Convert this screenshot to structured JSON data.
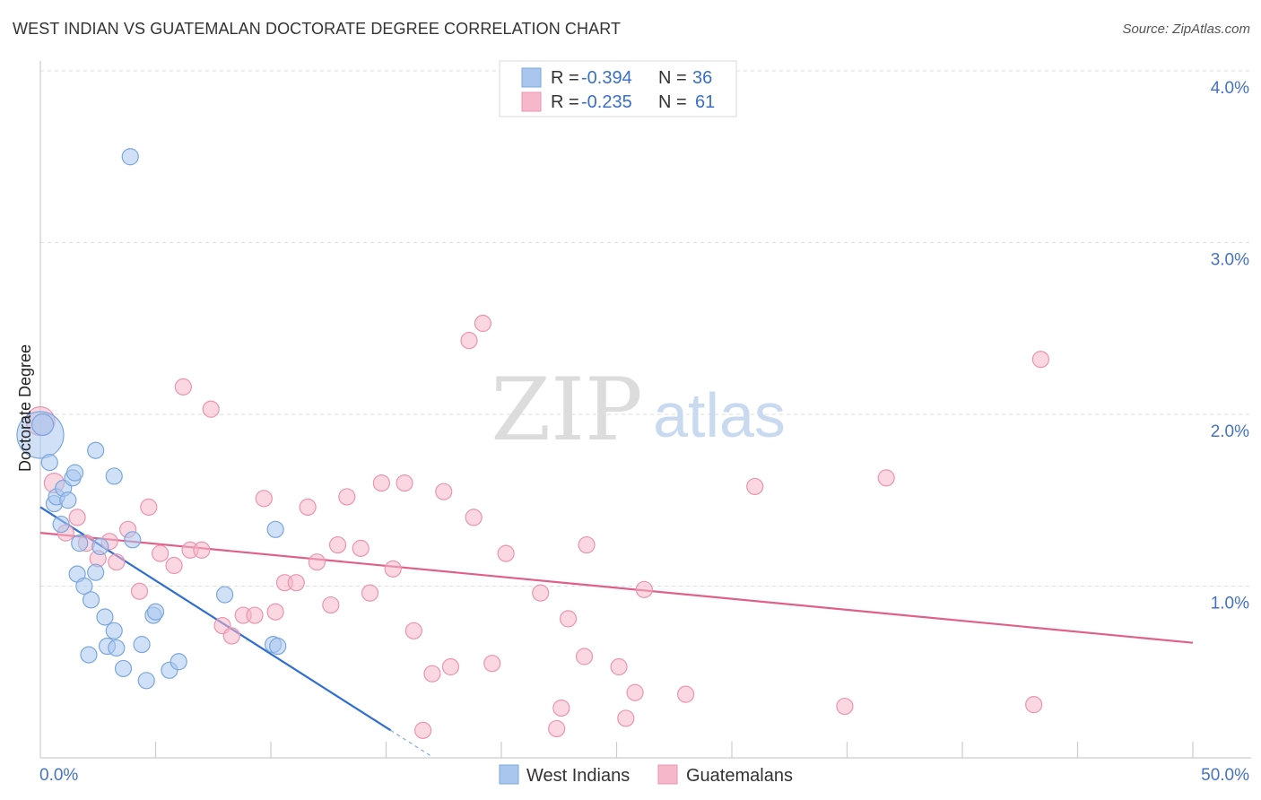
{
  "title": "WEST INDIAN VS GUATEMALAN DOCTORATE DEGREE CORRELATION CHART",
  "source": "Source: ZipAtlas.com",
  "watermark": {
    "zip": "ZIP",
    "atlas": "atlas"
  },
  "colors": {
    "west_indians_fill": "#a9c7ee",
    "west_indians_stroke": "#7aa7de",
    "west_indians_line": "#2f6fcf",
    "guatemalans_fill": "#f5b7c9",
    "guatemalans_stroke": "#ec94b0",
    "guatemalans_line": "#e0608a",
    "tick_label": "#4472c4",
    "grid": "#dddddd"
  },
  "legend": {
    "rows": [
      {
        "r_label": "R =",
        "r_value": "-0.394",
        "n_label": "N =",
        "n_value": "36"
      },
      {
        "r_label": "R =",
        "r_value": "-0.235",
        "n_label": "N =",
        "n_value": "61"
      }
    ]
  },
  "chart_data": {
    "type": "scatter",
    "title": "WEST INDIAN VS GUATEMALAN DOCTORATE DEGREE CORRELATION CHART",
    "xlabel": "",
    "ylabel": "Doctorate Degree",
    "xlim": [
      0,
      50
    ],
    "ylim": [
      0,
      4.0
    ],
    "x_tick_labels": [
      "0.0%",
      "50.0%"
    ],
    "y_ticks": [
      1.0,
      2.0,
      3.0,
      4.0
    ],
    "y_tick_labels": [
      "1.0%",
      "2.0%",
      "3.0%",
      "4.0%"
    ],
    "legend_position": "top-center",
    "series": [
      {
        "name": "West Indians",
        "R": -0.394,
        "N": 36,
        "trend": {
          "x0": 0.0,
          "y0": 1.46,
          "x1": 15.2,
          "y1": 0.16,
          "dashed_to_x": 17.0
        },
        "points": [
          [
            0.0,
            1.88,
            26
          ],
          [
            0.1,
            1.94,
            12
          ],
          [
            0.4,
            1.72,
            9
          ],
          [
            0.6,
            1.48,
            9
          ],
          [
            0.7,
            1.52,
            9
          ],
          [
            0.9,
            1.36,
            9
          ],
          [
            1.0,
            1.57,
            9
          ],
          [
            1.2,
            1.5,
            9
          ],
          [
            1.4,
            1.63,
            9
          ],
          [
            1.5,
            1.66,
            9
          ],
          [
            1.6,
            1.07,
            9
          ],
          [
            1.7,
            1.25,
            9
          ],
          [
            1.9,
            1.0,
            9
          ],
          [
            2.1,
            0.6,
            9
          ],
          [
            2.2,
            0.92,
            9
          ],
          [
            2.4,
            1.08,
            9
          ],
          [
            2.4,
            1.79,
            9
          ],
          [
            2.6,
            1.23,
            9
          ],
          [
            2.8,
            0.82,
            9
          ],
          [
            2.9,
            0.65,
            9
          ],
          [
            3.2,
            0.74,
            9
          ],
          [
            3.3,
            0.64,
            9
          ],
          [
            3.2,
            1.64,
            9
          ],
          [
            3.6,
            0.52,
            9
          ],
          [
            3.9,
            3.5,
            9
          ],
          [
            4.0,
            1.27,
            9
          ],
          [
            4.4,
            0.66,
            9
          ],
          [
            4.6,
            0.45,
            9
          ],
          [
            4.9,
            0.83,
            9
          ],
          [
            5.0,
            0.85,
            9
          ],
          [
            5.6,
            0.51,
            9
          ],
          [
            6.0,
            0.56,
            9
          ],
          [
            8.0,
            0.95,
            9
          ],
          [
            10.1,
            0.66,
            9
          ],
          [
            10.2,
            1.33,
            9
          ],
          [
            10.3,
            0.65,
            9
          ]
        ]
      },
      {
        "name": "Guatemalans",
        "R": -0.235,
        "N": 61,
        "trend": {
          "x0": 0.0,
          "y0": 1.31,
          "x1": 50.0,
          "y1": 0.67
        },
        "points": [
          [
            0.0,
            1.96,
            16
          ],
          [
            0.6,
            1.6,
            11
          ],
          [
            1.1,
            1.31,
            9
          ],
          [
            1.6,
            1.4,
            9
          ],
          [
            2.0,
            1.25,
            9
          ],
          [
            2.5,
            1.16,
            9
          ],
          [
            3.0,
            1.26,
            9
          ],
          [
            3.3,
            1.14,
            9
          ],
          [
            3.8,
            1.33,
            9
          ],
          [
            4.3,
            0.97,
            9
          ],
          [
            4.7,
            1.46,
            9
          ],
          [
            5.2,
            1.19,
            9
          ],
          [
            5.8,
            1.12,
            9
          ],
          [
            6.2,
            2.16,
            9
          ],
          [
            6.5,
            1.21,
            9
          ],
          [
            7.0,
            1.21,
            9
          ],
          [
            7.4,
            2.03,
            9
          ],
          [
            7.9,
            0.77,
            9
          ],
          [
            8.3,
            0.71,
            9
          ],
          [
            8.8,
            0.83,
            9
          ],
          [
            9.3,
            0.83,
            9
          ],
          [
            9.7,
            1.51,
            9
          ],
          [
            10.2,
            0.85,
            9
          ],
          [
            10.6,
            1.02,
            9
          ],
          [
            11.1,
            1.02,
            9
          ],
          [
            11.6,
            1.46,
            9
          ],
          [
            12.0,
            1.14,
            9
          ],
          [
            12.6,
            0.89,
            9
          ],
          [
            12.9,
            1.24,
            9
          ],
          [
            13.3,
            1.52,
            9
          ],
          [
            13.9,
            1.22,
            9
          ],
          [
            14.3,
            0.96,
            9
          ],
          [
            14.8,
            1.6,
            9
          ],
          [
            15.3,
            1.1,
            9
          ],
          [
            15.8,
            1.6,
            9
          ],
          [
            16.2,
            0.74,
            9
          ],
          [
            16.6,
            0.16,
            9
          ],
          [
            17.0,
            0.49,
            9
          ],
          [
            17.5,
            1.55,
            9
          ],
          [
            17.8,
            0.53,
            9
          ],
          [
            18.6,
            2.43,
            9
          ],
          [
            18.8,
            1.4,
            9
          ],
          [
            19.2,
            2.53,
            9
          ],
          [
            19.6,
            0.55,
            9
          ],
          [
            20.2,
            1.19,
            9
          ],
          [
            21.7,
            0.96,
            9
          ],
          [
            22.4,
            0.17,
            9
          ],
          [
            22.6,
            0.29,
            9
          ],
          [
            22.9,
            0.81,
            9
          ],
          [
            23.6,
            0.59,
            9
          ],
          [
            23.7,
            1.24,
            9
          ],
          [
            25.1,
            0.53,
            9
          ],
          [
            25.4,
            0.23,
            9
          ],
          [
            25.8,
            0.38,
            9
          ],
          [
            26.2,
            0.98,
            9
          ],
          [
            28.0,
            0.37,
            9
          ],
          [
            31.0,
            1.58,
            9
          ],
          [
            34.9,
            0.3,
            9
          ],
          [
            36.7,
            1.63,
            9
          ],
          [
            43.1,
            0.31,
            9
          ],
          [
            43.4,
            2.32,
            9
          ]
        ]
      }
    ]
  }
}
